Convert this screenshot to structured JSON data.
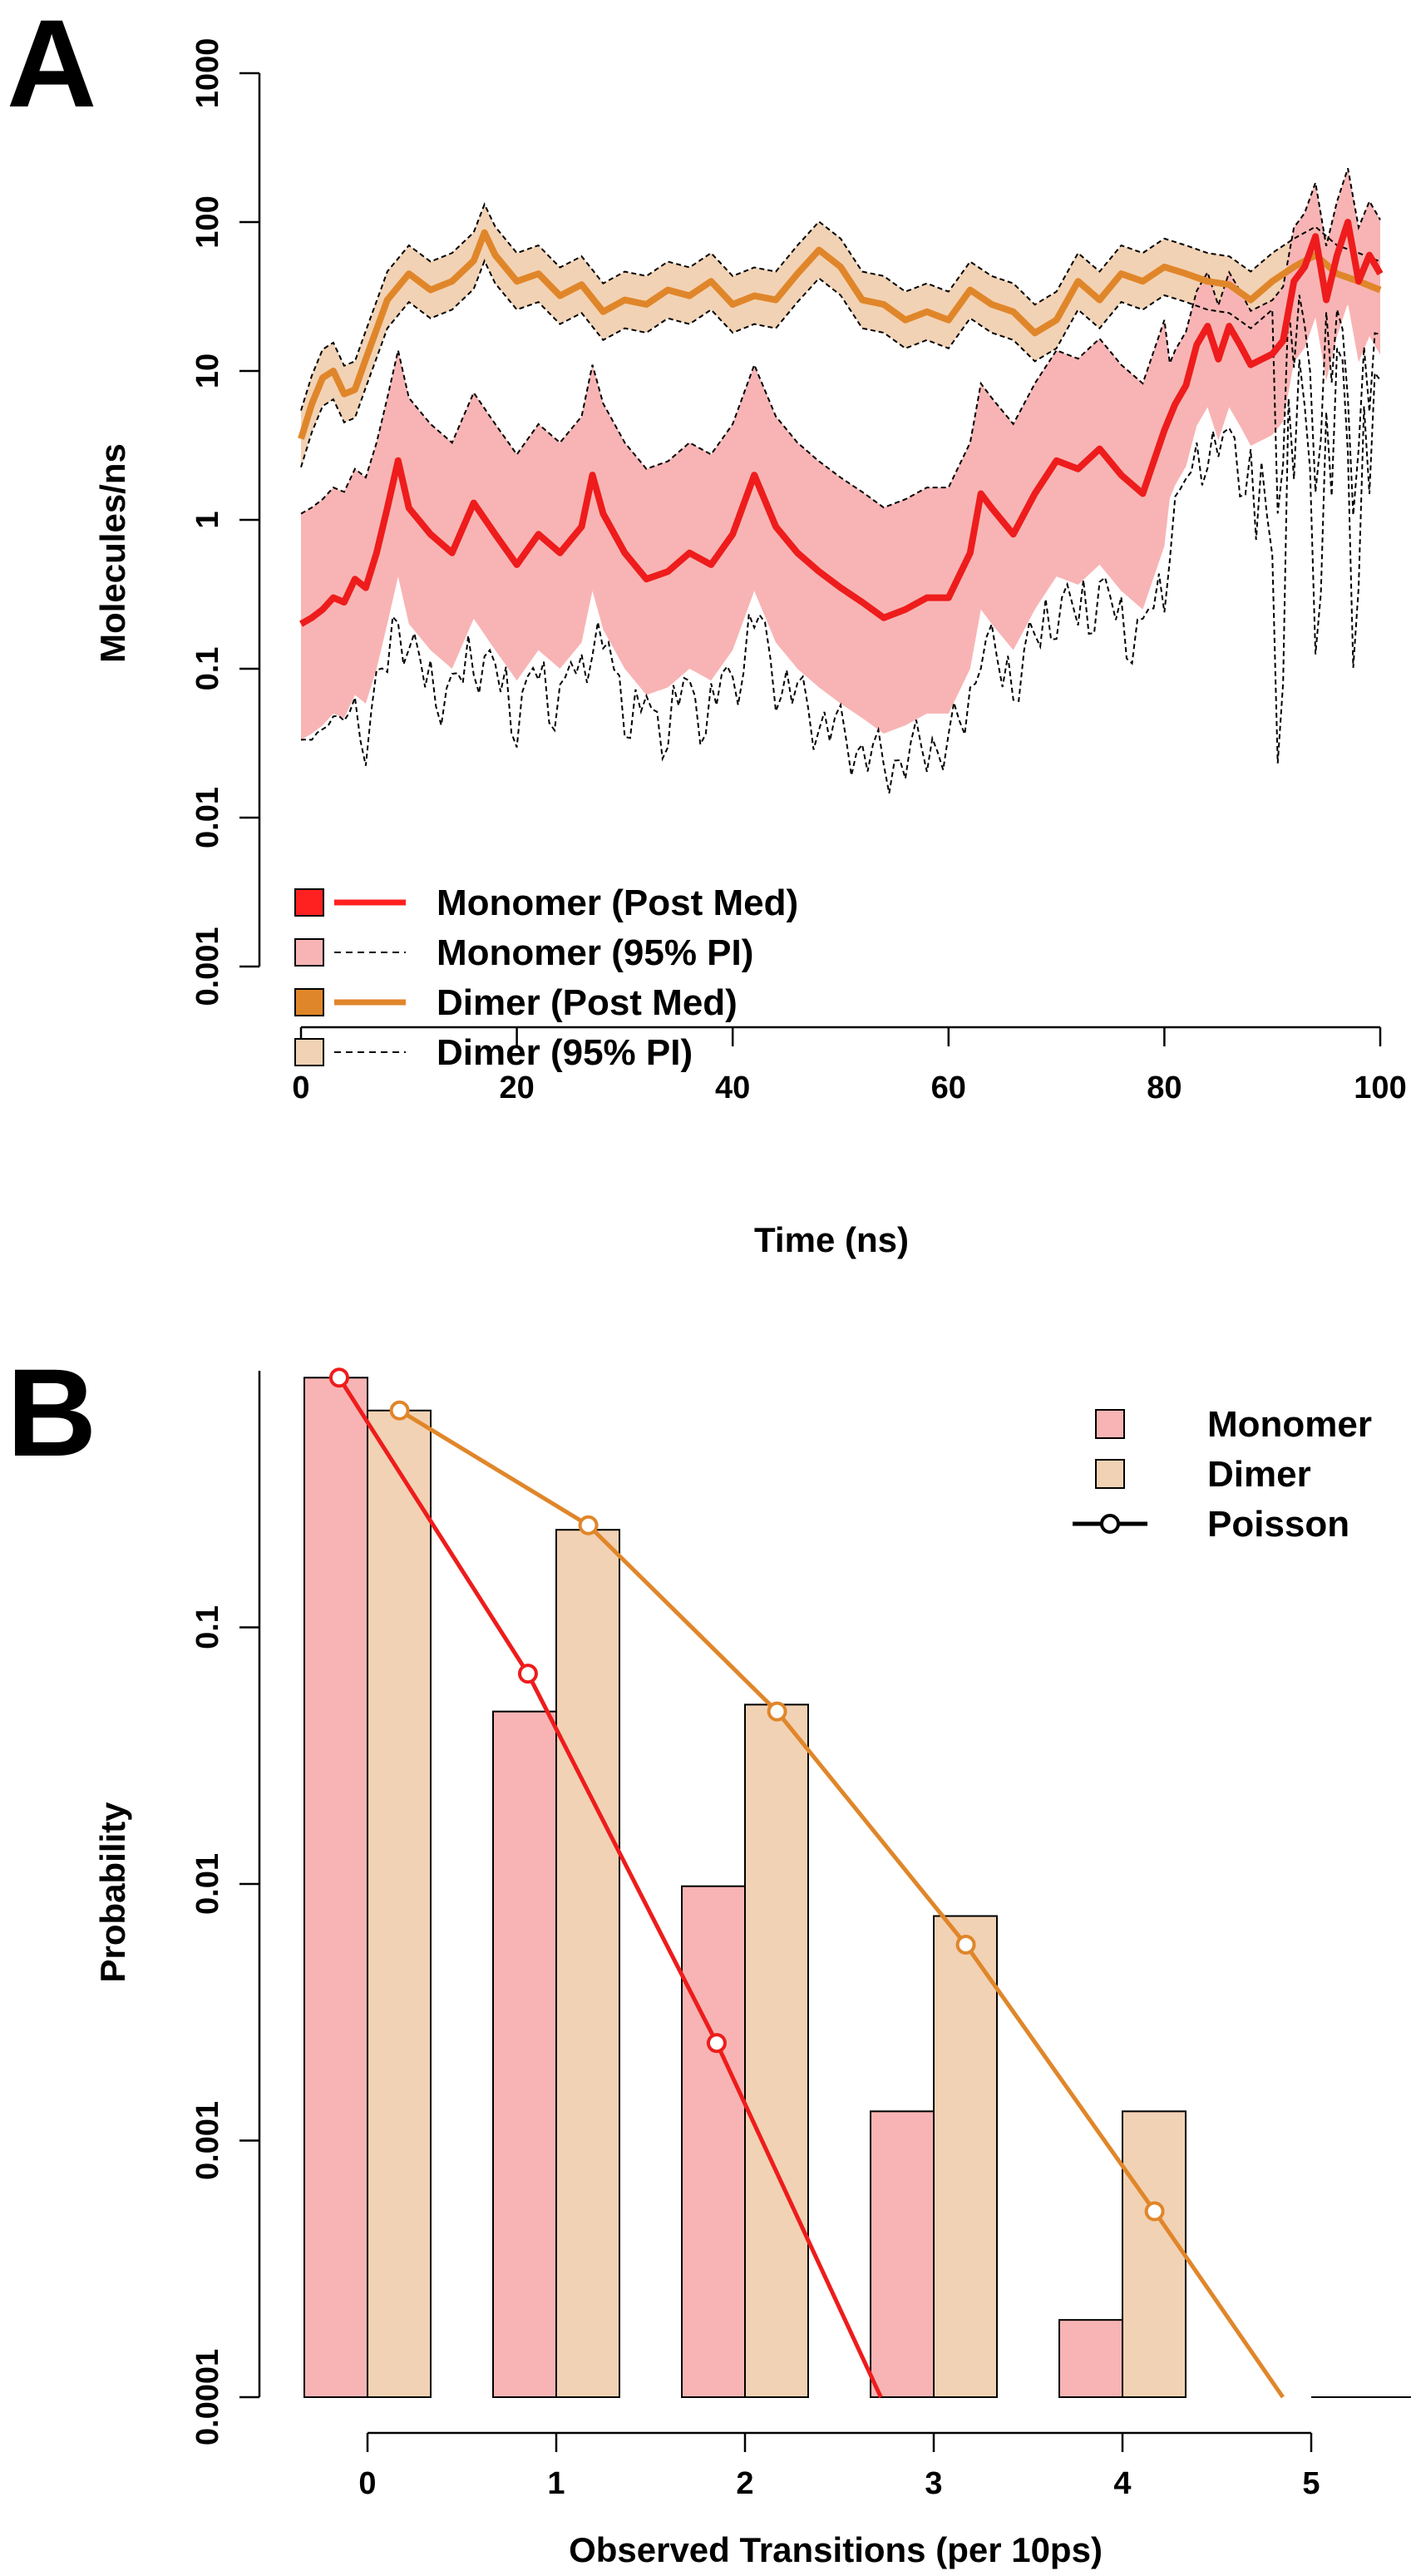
{
  "chart_data": [
    {
      "type": "line",
      "panel_label": "A",
      "xlabel": "Time (ns)",
      "ylabel": "Molecules/ns",
      "xlim": [
        0,
        100
      ],
      "ylim": [
        0.001,
        1000
      ],
      "yscale": "log",
      "xticks": [
        0,
        20,
        40,
        60,
        80,
        100
      ],
      "yticks": [
        0.001,
        0.01,
        0.1,
        1,
        10,
        100,
        1000
      ],
      "yticklabels": [
        "0.001",
        "0.01",
        "0.1",
        "1",
        "10",
        "100",
        "1000"
      ],
      "grid": false,
      "legend_position": "bottom-left",
      "legend": [
        {
          "label": "Monomer (Post Med)",
          "fill": "#ff2020",
          "line": "solid"
        },
        {
          "label": "Monomer (95% PI)",
          "fill": "#f8b4b4",
          "line": "dashed"
        },
        {
          "label": "Dimer (Post Med)",
          "fill": "#e0862a",
          "line": "solid"
        },
        {
          "label": "Dimer  (95% PI)",
          "fill": "#f2d2b4",
          "line": "dashed"
        }
      ],
      "series": [
        {
          "name": "Monomer (Post Med)",
          "color": "#ee1c1c",
          "x": [
            0,
            1,
            2,
            3,
            4,
            5,
            6,
            7,
            8,
            9,
            10,
            12,
            14,
            16,
            18,
            20,
            22,
            24,
            26,
            27,
            28,
            30,
            32,
            34,
            36,
            38,
            40,
            42,
            44,
            46,
            48,
            50,
            52,
            54,
            56,
            58,
            60,
            62,
            63,
            64,
            66,
            68,
            70,
            72,
            74,
            76,
            78,
            80,
            81,
            82,
            83,
            84,
            85,
            86,
            87,
            88,
            90,
            91,
            92,
            93,
            94,
            95,
            96,
            97,
            98,
            99,
            100
          ],
          "values": [
            0.2,
            0.22,
            0.25,
            0.3,
            0.28,
            0.4,
            0.35,
            0.6,
            1.2,
            2.5,
            1.2,
            0.8,
            0.6,
            1.3,
            0.8,
            0.5,
            0.8,
            0.6,
            0.9,
            2.0,
            1.1,
            0.6,
            0.4,
            0.45,
            0.6,
            0.5,
            0.8,
            2.0,
            0.9,
            0.6,
            0.45,
            0.35,
            0.28,
            0.22,
            0.25,
            0.3,
            0.3,
            0.6,
            1.5,
            1.2,
            0.8,
            1.5,
            2.5,
            2.2,
            3.0,
            2.0,
            1.5,
            4.0,
            6.0,
            8.0,
            15.0,
            20.0,
            12.0,
            20.0,
            15.0,
            11.0,
            13.0,
            16.0,
            40.0,
            50.0,
            80.0,
            30.0,
            60.0,
            100.0,
            40.0,
            60.0,
            45.0
          ]
        },
        {
          "name": "Dimer (Post Med)",
          "color": "#e0862a",
          "x": [
            0,
            1,
            2,
            3,
            4,
            5,
            6,
            8,
            10,
            12,
            14,
            16,
            17,
            18,
            20,
            22,
            24,
            26,
            28,
            30,
            32,
            34,
            36,
            38,
            40,
            42,
            44,
            46,
            48,
            50,
            52,
            54,
            56,
            58,
            60,
            62,
            64,
            66,
            68,
            70,
            72,
            74,
            76,
            78,
            80,
            82,
            84,
            86,
            88,
            90,
            92,
            94,
            96,
            98,
            100
          ],
          "values": [
            3.5,
            6.0,
            9.0,
            10.0,
            7.0,
            7.5,
            12.0,
            30.0,
            45.0,
            35.0,
            40.0,
            55.0,
            85.0,
            60.0,
            40.0,
            45.0,
            32.0,
            38.0,
            25.0,
            30.0,
            28.0,
            35.0,
            32.0,
            40.0,
            28.0,
            32.0,
            30.0,
            45.0,
            65.0,
            50.0,
            30.0,
            28.0,
            22.0,
            25.0,
            22.0,
            35.0,
            28.0,
            25.0,
            18.0,
            22.0,
            40.0,
            30.0,
            45.0,
            40.0,
            50.0,
            45.0,
            40.0,
            38.0,
            30.0,
            40.0,
            50.0,
            60.0,
            45.0,
            40.0,
            35.0
          ]
        }
      ]
    },
    {
      "type": "bar",
      "panel_label": "B",
      "xlabel": "Observed Transitions (per 10ps)",
      "ylabel": "Probability",
      "yscale": "log",
      "ylim": [
        0.0001,
        1.0
      ],
      "xticks": [
        "0",
        "1",
        "2",
        "3",
        "4",
        "5"
      ],
      "yticks": [
        0.0001,
        0.001,
        0.01,
        0.1
      ],
      "yticklabels": [
        "0.0001",
        "0.001",
        "0.01",
        "0.1"
      ],
      "grid": false,
      "legend_position": "top-right",
      "legend": [
        {
          "label": "Monomer",
          "fill": "#f8b4b4",
          "marker": "box"
        },
        {
          "label": "Dimer",
          "fill": "#f2d2b4",
          "marker": "box"
        },
        {
          "label": "Poisson",
          "color": "#000000",
          "marker": "line-circle"
        }
      ],
      "categories": [
        0,
        1,
        2,
        3,
        4,
        5
      ],
      "series": [
        {
          "name": "Monomer",
          "kind": "bar",
          "color": "#f8b4b4",
          "values": [
            0.94,
            0.047,
            0.0098,
            0.0013,
            0.0002,
            null
          ]
        },
        {
          "name": "Dimer",
          "kind": "bar",
          "color": "#f2d2b4",
          "values": [
            0.7,
            0.24,
            0.05,
            0.0075,
            0.0013,
            null
          ]
        },
        {
          "name": "Monomer Poisson",
          "kind": "line",
          "color": "#ee1c1c",
          "x": [
            -0.15,
            0.85,
            1.85,
            2.72
          ],
          "values": [
            0.94,
            0.066,
            0.0024,
            0.0001
          ]
        },
        {
          "name": "Dimer Poisson",
          "kind": "line",
          "color": "#e0862a",
          "x": [
            0.17,
            1.17,
            2.17,
            3.17,
            4.17,
            4.85
          ],
          "values": [
            0.7,
            0.25,
            0.047,
            0.0058,
            0.00053,
            0.0001
          ]
        }
      ]
    }
  ]
}
